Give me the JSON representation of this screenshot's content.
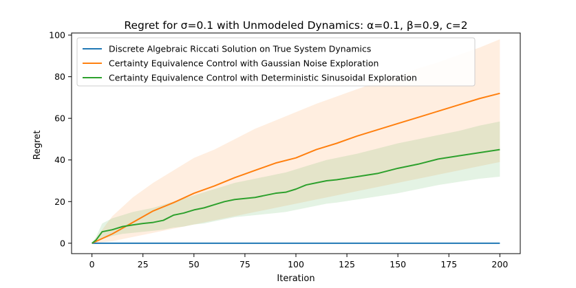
{
  "chart_data": {
    "type": "line",
    "title": "Regret for σ=0.1 with Unmodeled Dynamics: α=0.1, β=0.9, c=2",
    "xlabel": "Iteration",
    "ylabel": "Regret",
    "xlim": [
      -10,
      210
    ],
    "ylim": [
      -5,
      101
    ],
    "xticks": [
      0,
      25,
      50,
      75,
      100,
      125,
      150,
      175,
      200
    ],
    "yticks": [
      0,
      20,
      40,
      60,
      80,
      100
    ],
    "grid": false,
    "legend_position": "upper-left",
    "series": [
      {
        "name": "Discrete Algebraic Riccati Solution on True System Dynamics",
        "color": "#1f77b4",
        "x": [
          0,
          200
        ],
        "y": [
          0,
          0
        ]
      },
      {
        "name": "Certainty Equivalence Control with Gaussian Noise Exploration",
        "color": "#ff7f0e",
        "x": [
          0,
          10,
          20,
          30,
          40,
          50,
          60,
          70,
          80,
          90,
          100,
          110,
          120,
          130,
          140,
          150,
          160,
          170,
          180,
          190,
          200
        ],
        "y": [
          0,
          4.5,
          10,
          15.5,
          19.5,
          24,
          27.5,
          31.5,
          35,
          38.5,
          41,
          45,
          48,
          51.5,
          54.5,
          57.5,
          60.5,
          63.5,
          66.5,
          69.5,
          72
        ],
        "band_upper": [
          0,
          13,
          22,
          29,
          35,
          41,
          45,
          50,
          55,
          59,
          63,
          67,
          70.5,
          74,
          77.5,
          80.5,
          84,
          87,
          90.5,
          94,
          98
        ],
        "band_lower": [
          0,
          1,
          3,
          5,
          7,
          9,
          11,
          13,
          15,
          17,
          19,
          21,
          23,
          25,
          27,
          29,
          31,
          33,
          35,
          37,
          39
        ]
      },
      {
        "name": "Certainty Equivalence Control with Deterministic Sinusoidal Exploration",
        "color": "#2ca02c",
        "x": [
          0,
          2,
          5,
          10,
          15,
          20,
          25,
          30,
          35,
          40,
          45,
          50,
          55,
          60,
          65,
          70,
          75,
          80,
          85,
          90,
          95,
          100,
          105,
          110,
          115,
          120,
          130,
          140,
          150,
          160,
          170,
          180,
          190,
          200
        ],
        "y": [
          0,
          1.5,
          5.5,
          6.5,
          8,
          8.8,
          9.5,
          10,
          11,
          13.5,
          14.5,
          16,
          17,
          18.5,
          20,
          21,
          21.5,
          22,
          23,
          24,
          24.5,
          26,
          28,
          29,
          30,
          30.5,
          32,
          33.5,
          36,
          38,
          40.5,
          42,
          43.5,
          45
        ],
        "band_upper": [
          0,
          3,
          9.5,
          12,
          13.5,
          15,
          16,
          17,
          18.5,
          20,
          21.5,
          23,
          24.5,
          26,
          27.5,
          29,
          30,
          31,
          32,
          33,
          34,
          35.5,
          37,
          38.5,
          40,
          41,
          43,
          45.5,
          48,
          50,
          52,
          54,
          56.5,
          58.5
        ],
        "band_lower": [
          0,
          0.5,
          2,
          3.5,
          4.5,
          5,
          5.5,
          6,
          6.5,
          7.5,
          8,
          9,
          9.5,
          10.5,
          11.5,
          12.5,
          13,
          13.5,
          14,
          14.5,
          15,
          16,
          17,
          18,
          19,
          19.5,
          21,
          22.5,
          24,
          26,
          28,
          29.5,
          31,
          32
        ]
      }
    ]
  }
}
